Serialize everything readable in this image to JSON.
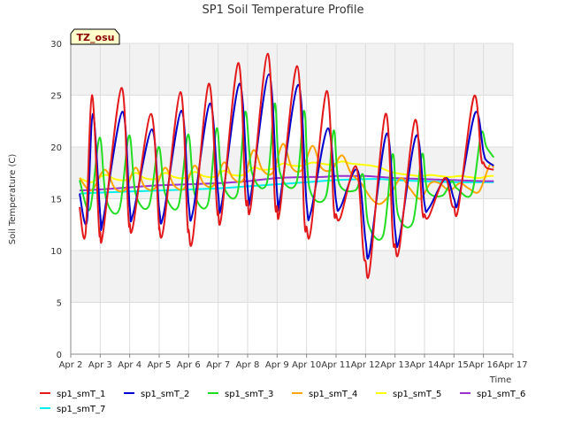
{
  "chart_data": {
    "type": "line",
    "title": "SP1 Soil Temperature Profile",
    "xlabel": "Time",
    "ylabel": "Soil Temperature (C)",
    "badge": "TZ_osu",
    "ylim": [
      0,
      30
    ],
    "yticks": [
      0,
      5,
      10,
      15,
      20,
      25,
      30
    ],
    "xlim": [
      2,
      17
    ],
    "xticks": [
      {
        "v": 2,
        "label": "Apr 2"
      },
      {
        "v": 3,
        "label": "Apr 3"
      },
      {
        "v": 4,
        "label": "Apr 4"
      },
      {
        "v": 5,
        "label": "Apr 5"
      },
      {
        "v": 6,
        "label": "Apr 6"
      },
      {
        "v": 7,
        "label": "Apr 7"
      },
      {
        "v": 8,
        "label": "Apr 8"
      },
      {
        "v": 9,
        "label": "Apr 9"
      },
      {
        "v": 10,
        "label": "Apr 10"
      },
      {
        "v": 11,
        "label": "Apr 11"
      },
      {
        "v": 12,
        "label": "Apr 12"
      },
      {
        "v": 13,
        "label": "Apr 13"
      },
      {
        "v": 14,
        "label": "Apr 14"
      },
      {
        "v": 15,
        "label": "Apr 15"
      },
      {
        "v": 16,
        "label": "Apr 16"
      },
      {
        "v": 17,
        "label": "Apr 17"
      }
    ],
    "grid": true,
    "legend_position": "bottom",
    "series": [
      {
        "name": "sp1_smT_1",
        "color": "#e31a1c",
        "x": [
          2.3,
          2.5,
          2.72,
          2.95,
          3.0,
          3.1,
          3.72,
          3.95,
          4.0,
          4.12,
          4.72,
          4.98,
          5.0,
          5.15,
          5.72,
          5.95,
          6.0,
          6.15,
          6.68,
          6.95,
          7.0,
          7.12,
          7.68,
          7.92,
          8.0,
          8.12,
          8.68,
          8.92,
          9.0,
          9.1,
          9.68,
          9.92,
          10.0,
          10.15,
          10.68,
          10.92,
          11.0,
          11.15,
          11.68,
          11.92,
          12.0,
          12.15,
          12.68,
          12.92,
          13.0,
          13.15,
          13.68,
          13.92,
          14.0,
          14.15,
          14.68,
          14.92,
          15.0,
          15.15,
          15.68,
          15.92,
          16.0,
          16.1,
          16.35
        ],
        "y": [
          14.2,
          11.6,
          25.0,
          12.5,
          11.8,
          11.8,
          25.7,
          13.5,
          12.6,
          12.5,
          23.2,
          13.0,
          12.3,
          12.2,
          25.3,
          13.0,
          12.0,
          11.4,
          26.1,
          14.5,
          13.8,
          13.5,
          28.1,
          15.5,
          14.8,
          14.5,
          29.0,
          15.0,
          14.3,
          14.0,
          27.8,
          13.2,
          12.3,
          12.1,
          25.4,
          14.2,
          13.5,
          13.2,
          18.1,
          10.0,
          9.0,
          8.3,
          23.2,
          11.5,
          10.6,
          10.3,
          22.6,
          14.0,
          13.5,
          13.3,
          17.0,
          14.5,
          14.2,
          14.1,
          24.9,
          19.0,
          18.5,
          18.0,
          17.8
        ]
      },
      {
        "name": "sp1_smT_2",
        "color": "#0000cc",
        "x": [
          2.3,
          2.55,
          2.75,
          3.0,
          3.1,
          3.75,
          4.0,
          4.12,
          4.75,
          5.0,
          5.15,
          5.75,
          6.0,
          6.15,
          6.72,
          7.0,
          7.12,
          7.72,
          8.0,
          8.12,
          8.72,
          9.0,
          9.1,
          9.72,
          10.0,
          10.15,
          10.72,
          11.0,
          11.15,
          11.72,
          12.0,
          12.15,
          12.72,
          13.0,
          13.15,
          13.72,
          14.0,
          14.15,
          14.72,
          15.0,
          15.15,
          15.72,
          16.0,
          16.1,
          16.35
        ],
        "y": [
          15.5,
          12.8,
          23.2,
          13.5,
          13.0,
          23.4,
          14.2,
          13.6,
          21.7,
          14.0,
          13.5,
          23.5,
          14.5,
          13.8,
          24.2,
          15.5,
          14.5,
          26.1,
          16.0,
          15.5,
          27.0,
          15.5,
          15.0,
          26.0,
          14.5,
          13.8,
          21.8,
          14.8,
          14.2,
          17.8,
          11.0,
          10.0,
          21.3,
          12.0,
          11.2,
          21.1,
          14.5,
          14.1,
          17.0,
          15.0,
          14.8,
          23.3,
          19.5,
          18.7,
          18.2
        ]
      },
      {
        "name": "sp1_smT_3",
        "color": "#22dd22",
        "x": [
          2.3,
          2.65,
          2.98,
          3.2,
          3.65,
          3.98,
          4.2,
          4.65,
          4.98,
          5.2,
          5.65,
          5.98,
          6.2,
          6.65,
          6.95,
          7.15,
          7.65,
          7.92,
          8.15,
          8.65,
          8.92,
          9.1,
          9.65,
          9.92,
          10.1,
          10.65,
          10.92,
          11.1,
          11.65,
          11.92,
          12.1,
          12.6,
          12.92,
          13.1,
          13.6,
          13.92,
          14.1,
          14.6,
          14.92,
          15.1,
          15.6,
          15.92,
          16.1,
          16.35
        ],
        "y": [
          16.8,
          14.0,
          20.9,
          15.0,
          14.0,
          21.1,
          15.5,
          14.3,
          20.0,
          15.5,
          14.3,
          21.2,
          15.5,
          14.5,
          21.8,
          16.5,
          15.5,
          23.4,
          17.5,
          16.5,
          24.2,
          17.5,
          16.5,
          23.5,
          16.0,
          15.2,
          21.6,
          16.5,
          15.8,
          17.3,
          12.5,
          11.5,
          19.3,
          13.5,
          12.7,
          19.3,
          15.8,
          15.3,
          16.7,
          16.0,
          15.5,
          21.3,
          20.0,
          19.0
        ]
      },
      {
        "name": "sp1_smT_4",
        "color": "#ffa500",
        "x": [
          2.3,
          2.7,
          3.15,
          3.5,
          3.85,
          4.2,
          4.5,
          4.85,
          5.2,
          5.5,
          5.85,
          6.2,
          6.5,
          6.85,
          7.2,
          7.5,
          7.85,
          8.2,
          8.5,
          8.85,
          9.2,
          9.5,
          9.85,
          10.2,
          10.5,
          10.85,
          11.2,
          11.5,
          11.85,
          12.2,
          12.5,
          12.85,
          13.2,
          13.5,
          13.85,
          14.2,
          14.5,
          14.85,
          15.2,
          15.5,
          15.85,
          16.2,
          16.35
        ],
        "y": [
          17.0,
          15.8,
          17.8,
          16.0,
          15.9,
          18.0,
          16.2,
          16.0,
          18.0,
          16.3,
          16.0,
          18.2,
          16.5,
          16.3,
          18.5,
          17.0,
          16.8,
          19.7,
          17.8,
          17.5,
          20.3,
          18.0,
          17.8,
          20.1,
          18.0,
          17.8,
          19.2,
          17.5,
          16.5,
          15.0,
          14.5,
          15.5,
          17.0,
          16.0,
          15.0,
          16.5,
          16.5,
          15.8,
          16.5,
          16.0,
          15.7,
          18.2,
          18.0
        ]
      },
      {
        "name": "sp1_smT_5",
        "color": "#ffff00",
        "x": [
          2.3,
          2.7,
          3.15,
          3.5,
          3.85,
          4.2,
          4.5,
          4.85,
          5.2,
          5.5,
          5.85,
          6.2,
          6.5,
          6.85,
          7.2,
          7.5,
          7.85,
          8.2,
          8.5,
          8.85,
          9.2,
          9.5,
          9.85,
          10.2,
          10.5,
          10.85,
          11.2,
          11.5,
          11.85,
          12.2,
          12.5,
          12.85,
          13.2,
          13.5,
          13.85,
          14.2,
          14.5,
          14.85,
          15.2,
          15.5,
          15.85,
          16.2,
          16.35
        ],
        "y": [
          17.0,
          16.6,
          17.3,
          16.9,
          16.8,
          17.5,
          17.0,
          16.9,
          17.5,
          17.1,
          17.0,
          17.6,
          17.2,
          17.1,
          17.7,
          17.3,
          17.3,
          18.0,
          17.8,
          17.9,
          18.4,
          18.2,
          18.2,
          18.5,
          18.4,
          18.3,
          18.6,
          18.4,
          18.3,
          18.2,
          18.0,
          17.6,
          17.4,
          17.3,
          17.2,
          17.3,
          17.2,
          17.1,
          17.2,
          17.1,
          17.0,
          17.2,
          17.2
        ]
      },
      {
        "name": "sp1_smT_6",
        "color": "#9932cc",
        "x": [
          2.3,
          3.0,
          4.0,
          5.0,
          6.0,
          7.0,
          8.0,
          9.0,
          10.0,
          10.5,
          11.0,
          11.5,
          12.0,
          12.5,
          13.0,
          14.0,
          15.0,
          16.0,
          16.35
        ],
        "y": [
          15.8,
          15.9,
          16.1,
          16.3,
          16.4,
          16.5,
          16.7,
          17.0,
          17.1,
          17.1,
          17.2,
          17.2,
          17.2,
          17.1,
          17.0,
          16.9,
          16.8,
          16.7,
          16.7
        ]
      },
      {
        "name": "sp1_smT_7",
        "color": "#00eeee",
        "x": [
          2.3,
          3.0,
          4.0,
          5.0,
          6.0,
          7.0,
          8.0,
          9.0,
          10.0,
          11.0,
          12.0,
          12.5,
          13.0,
          14.0,
          15.0,
          16.0,
          16.35
        ],
        "y": [
          15.5,
          15.6,
          15.7,
          15.8,
          15.9,
          16.0,
          16.2,
          16.4,
          16.6,
          16.8,
          16.9,
          16.9,
          16.8,
          16.7,
          16.6,
          16.6,
          16.6
        ]
      }
    ]
  }
}
